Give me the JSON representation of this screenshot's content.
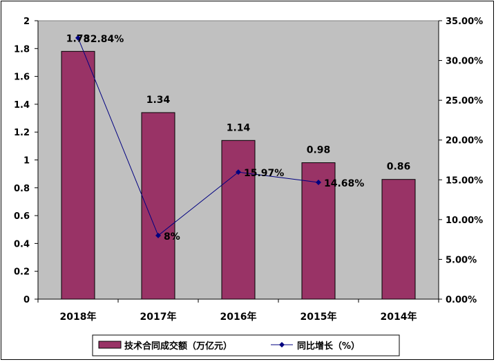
{
  "chart_data": {
    "type": "bar",
    "categories": [
      "2018年",
      "2017年",
      "2016年",
      "2015年",
      "2014年"
    ],
    "series": [
      {
        "name": "技术合同成交额（万亿元）",
        "type": "bar",
        "axis": "left",
        "values": [
          1.78,
          1.34,
          1.14,
          0.98,
          0.86
        ],
        "labels": [
          "1.78",
          "1.34",
          "1.14",
          "0.98",
          "0.86"
        ],
        "color": "#993366"
      },
      {
        "name": "同比增长（%）",
        "type": "line",
        "axis": "right",
        "values": [
          32.84,
          8,
          15.97,
          14.68,
          null
        ],
        "labels": [
          "32.84%",
          "8%",
          "15.97%",
          "14.68%",
          ""
        ],
        "color": "#000080"
      }
    ],
    "y_left": {
      "min": 0,
      "max": 2,
      "step": 0.2,
      "tick_labels": [
        "0",
        "0.2",
        "0.4",
        "0.6",
        "0.8",
        "1",
        "1.2",
        "1.4",
        "1.6",
        "1.8",
        "2"
      ]
    },
    "y_right": {
      "min": 0,
      "max": 35,
      "step": 5,
      "tick_labels": [
        "0.00%",
        "5.00%",
        "10.00%",
        "15.00%",
        "20.00%",
        "25.00%",
        "30.00%",
        "35.00%"
      ]
    },
    "plot_background": "#c0c0c0",
    "grid": false,
    "legend_position": "bottom"
  }
}
